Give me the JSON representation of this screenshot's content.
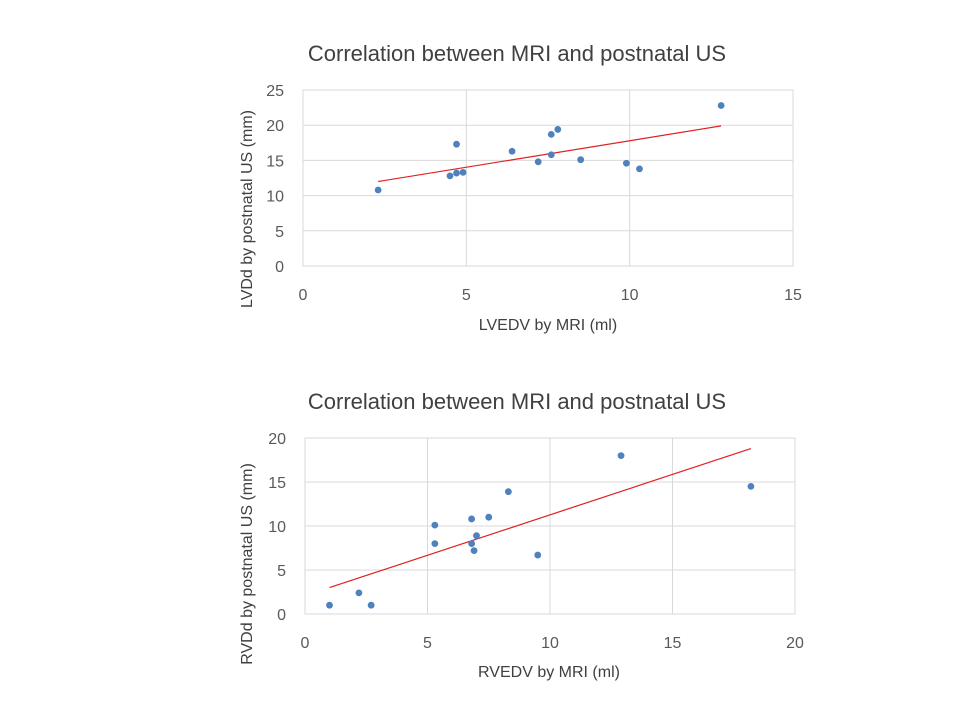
{
  "chart_data": [
    {
      "type": "scatter",
      "title": "Correlation between MRI and postnatal US",
      "xlabel": "LVEDV by MRI (ml)",
      "ylabel": "LVDd by postnatal US (mm)",
      "xlim": [
        0,
        15
      ],
      "ylim": [
        0,
        25
      ],
      "x_ticks": [
        "0",
        "5",
        "10",
        "15"
      ],
      "y_ticks": [
        "0",
        "5",
        "10",
        "15",
        "20",
        "25"
      ],
      "grid": true,
      "points": [
        {
          "x": 2.3,
          "y": 10.8
        },
        {
          "x": 4.5,
          "y": 12.8
        },
        {
          "x": 4.7,
          "y": 13.2
        },
        {
          "x": 4.9,
          "y": 13.3
        },
        {
          "x": 4.7,
          "y": 17.3
        },
        {
          "x": 6.4,
          "y": 16.3
        },
        {
          "x": 7.2,
          "y": 14.8
        },
        {
          "x": 7.6,
          "y": 15.8
        },
        {
          "x": 7.6,
          "y": 18.7
        },
        {
          "x": 7.8,
          "y": 19.4
        },
        {
          "x": 8.5,
          "y": 15.1
        },
        {
          "x": 9.9,
          "y": 14.6
        },
        {
          "x": 10.3,
          "y": 13.8
        },
        {
          "x": 12.8,
          "y": 22.8
        }
      ],
      "trendline": {
        "x": [
          2.3,
          12.8
        ],
        "y": [
          12.0,
          19.9
        ]
      },
      "marker_color": "#4f81bd",
      "trend_color": "#e02020"
    },
    {
      "type": "scatter",
      "title": "Correlation between MRI and postnatal US",
      "xlabel": "RVEDV by MRI (ml)",
      "ylabel": "RVDd by postnatal US (mm)",
      "xlim": [
        0,
        20
      ],
      "ylim": [
        0,
        20
      ],
      "x_ticks": [
        "0",
        "5",
        "10",
        "15",
        "20"
      ],
      "y_ticks": [
        "0",
        "5",
        "10",
        "15",
        "20"
      ],
      "grid": true,
      "points": [
        {
          "x": 1.0,
          "y": 1.0
        },
        {
          "x": 2.2,
          "y": 2.4
        },
        {
          "x": 2.7,
          "y": 1.0
        },
        {
          "x": 5.3,
          "y": 10.1
        },
        {
          "x": 5.3,
          "y": 8.0
        },
        {
          "x": 6.8,
          "y": 10.8
        },
        {
          "x": 6.8,
          "y": 8.0
        },
        {
          "x": 6.9,
          "y": 7.2
        },
        {
          "x": 7.0,
          "y": 8.9
        },
        {
          "x": 7.5,
          "y": 11.0
        },
        {
          "x": 8.3,
          "y": 13.9
        },
        {
          "x": 9.5,
          "y": 6.7
        },
        {
          "x": 12.9,
          "y": 18.0
        },
        {
          "x": 18.2,
          "y": 14.5
        }
      ],
      "trendline": {
        "x": [
          1.0,
          18.2
        ],
        "y": [
          3.0,
          18.8
        ]
      },
      "marker_color": "#4f81bd",
      "trend_color": "#e02020"
    }
  ]
}
